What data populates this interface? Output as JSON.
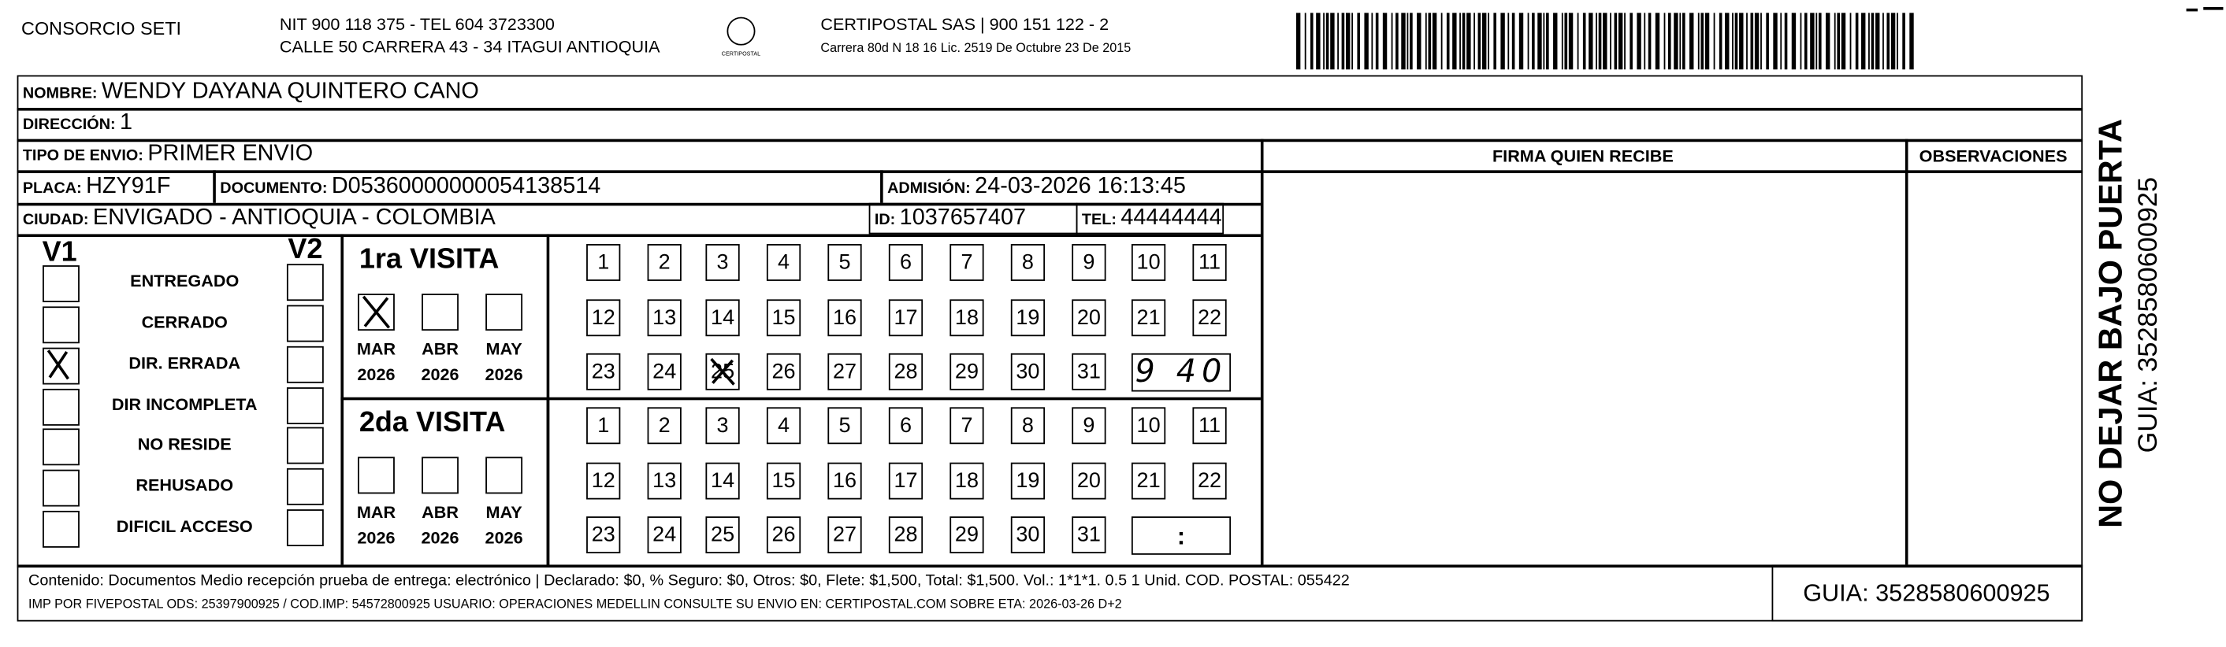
{
  "header": {
    "company": "CONSORCIO SETI",
    "nit_line": "NIT 900 118 375 - TEL 604 3723300",
    "address_line": "CALLE 50 CARRERA 43 - 34 ITAGUI ANTIOQUIA",
    "logo_text": "CERTIPOSTAL",
    "carrier": "CERTIPOSTAL SAS | 900 151 122 - 2",
    "carrier_address": "Carrera 80d N 18 16  Lic. 2519 De Octubre 23 De 2015"
  },
  "fields": {
    "nombre": {
      "label": "NOMBRE:",
      "value": "WENDY DAYANA QUINTERO CANO"
    },
    "direccion": {
      "label": "DIRECCIÓN:",
      "value": "1"
    },
    "tipo_envio": {
      "label": "TIPO DE ENVIO:",
      "value": "PRIMER ENVIO"
    },
    "placa": {
      "label": "PLACA:",
      "value": "HZY91F"
    },
    "documento": {
      "label": "DOCUMENTO:",
      "value": "D05360000000054138514"
    },
    "admision": {
      "label": "ADMISIÓN:",
      "value": "24-03-2026 16:13:45"
    },
    "ciudad": {
      "label": "CIUDAD:",
      "value": "ENVIGADO - ANTIOQUIA - COLOMBIA"
    },
    "id": {
      "label": "ID:",
      "value": "1037657407"
    },
    "tel": {
      "label": "TEL:",
      "value": "44444444"
    }
  },
  "columns": {
    "signature": "FIRMA QUIEN RECIBE",
    "observations": "OBSERVACIONES"
  },
  "status": {
    "v1": "V1",
    "v2": "V2",
    "options": [
      "ENTREGADO",
      "CERRADO",
      "DIR. ERRADA",
      "DIR INCOMPLETA",
      "NO RESIDE",
      "REHUSADO",
      "DIFICIL ACCESO"
    ]
  },
  "visits": [
    {
      "title": "1ra VISITA",
      "months": [
        {
          "month": "MAR",
          "year": 2026
        },
        {
          "month": "ABR",
          "year": 2026
        },
        {
          "month": "MAY",
          "year": 2026
        }
      ],
      "days": [
        1,
        2,
        3,
        4,
        5,
        6,
        7,
        8,
        9,
        10,
        11,
        12,
        13,
        14,
        15,
        16,
        17,
        18,
        19,
        20,
        21,
        22,
        23,
        24,
        25,
        26,
        27,
        28,
        29,
        30,
        31
      ],
      "time": "9 40"
    },
    {
      "title": "2da VISITA",
      "months": [
        {
          "month": "MAR",
          "year": 2026
        },
        {
          "month": "ABR",
          "year": 2026
        },
        {
          "month": "MAY",
          "year": 2026
        }
      ],
      "days": [
        1,
        2,
        3,
        4,
        5,
        6,
        7,
        8,
        9,
        10,
        11,
        12,
        13,
        14,
        15,
        16,
        17,
        18,
        19,
        20,
        21,
        22,
        23,
        24,
        25,
        26,
        27,
        28,
        29,
        30,
        31
      ],
      "time": ":"
    }
  ],
  "footer": {
    "content": "Contenido: Documentos Medio recepción prueba de entrega: electrónico | Declarado: $0, % Seguro: $0, Otros: $0, Flete: $1,500, Total: $1,500. Vol.: 1*1*1. 0.5  1 Unid. COD. POSTAL: 055422",
    "imp": "IMP POR FIVEPOSTAL ODS: 25397900925 / COD.IMP: 54572800925 USUARIO: OPERACIONES MEDELLIN CONSULTE SU ENVIO EN: CERTIPOSTAL.COM SOBRE ETA: 2026-03-26 D+2",
    "guide": "GUIA: 3528580600925"
  },
  "side": {
    "warning": "NO DEJAR BAJO PUERTA",
    "guide": "GUIA: 3528580600925"
  }
}
